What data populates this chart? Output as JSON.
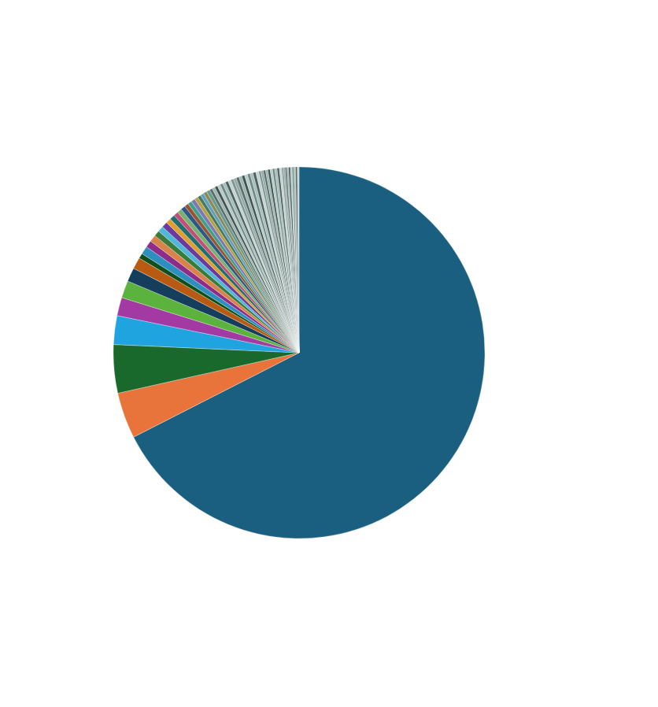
{
  "chart_data": {
    "type": "pie",
    "categories": [
      null,
      null,
      null,
      null,
      null,
      null,
      null,
      null,
      null,
      null,
      null,
      null,
      null,
      null,
      null,
      null,
      null,
      null,
      null,
      null,
      null,
      null,
      null,
      null,
      null,
      null,
      null,
      null,
      null,
      null,
      null,
      null,
      null,
      null,
      null,
      null,
      null,
      null,
      null,
      null,
      null,
      null,
      null,
      null,
      null,
      null,
      null,
      null,
      null,
      null,
      null,
      null,
      null,
      null,
      null,
      null,
      null,
      null,
      null,
      null,
      null,
      null,
      null,
      null,
      null,
      null
    ],
    "values": [
      67.5,
      4,
      4.2,
      2.5,
      1.6,
      1.5,
      1.2,
      1,
      0.45,
      0.7,
      0.6,
      0.6,
      0.5,
      0.5,
      0.5,
      0.45,
      0.45,
      0.4,
      0.4,
      0.4,
      0.35,
      0.35,
      0.35,
      0.3,
      0.3,
      0.3,
      0.3,
      0.3,
      0.25,
      0.25,
      0.25,
      0.25,
      0.25,
      0.25,
      0.25,
      0.25,
      0.25,
      0.25,
      0.25,
      0.25,
      0.25,
      0.25,
      0.25,
      0.25,
      0.25,
      0.25,
      0.2,
      0.2,
      0.2,
      0.2,
      0.2,
      0.2,
      0.2,
      0.2,
      0.2,
      0.2,
      0.15,
      0.15,
      0.15,
      0.15,
      0.15,
      0.15,
      0.15,
      0.15,
      0.15,
      0.15
    ],
    "colors": [
      "#1a5f80",
      "#e8743b",
      "#19692c",
      "#20a4df",
      "#a33aa3",
      "#5bb33d",
      "#143e5c",
      "#b85a12",
      "#0f4f1a",
      "#2d8fbf",
      "#8c2d8c",
      "#d9824a",
      "#3a7a3a",
      "#4fb8d9",
      "#6b3a9e",
      "#e0a030",
      "#1f6f6f",
      "#c44e7a",
      "#77b36b",
      "#2b5a8a",
      "#9a5530",
      "#3fa08a",
      "#7a7ab8",
      "#b8a040",
      "#4a7a5a",
      "#5f9fbf",
      "#8a8a5a",
      "#6a9a8a",
      "#5a6e6a",
      "#9fb5b1",
      "#3f5450",
      "#b9cbc7",
      "#6f8a86",
      "#a8bdb9",
      "#4c625e",
      "#c5d4d1",
      "#7d9692",
      "#94aaa6",
      "#5a6e6a",
      "#9fb5b1",
      "#3f5450",
      "#b9cbc7",
      "#6f8a86",
      "#a8bdb9",
      "#4c625e",
      "#c5d4d1",
      "#7d9692",
      "#94aaa6",
      "#5a6e6a",
      "#9fb5b1",
      "#3f5450",
      "#b9cbc7",
      "#6f8a86",
      "#a8bdb9",
      "#4c625e",
      "#c5d4d1",
      "#7d9692",
      "#94aaa6",
      "#5a6e6a",
      "#9fb5b1",
      "#3f5450",
      "#b9cbc7",
      "#6f8a86",
      "#a8bdb9",
      "#4c625e",
      "#c5d4d1"
    ]
  }
}
